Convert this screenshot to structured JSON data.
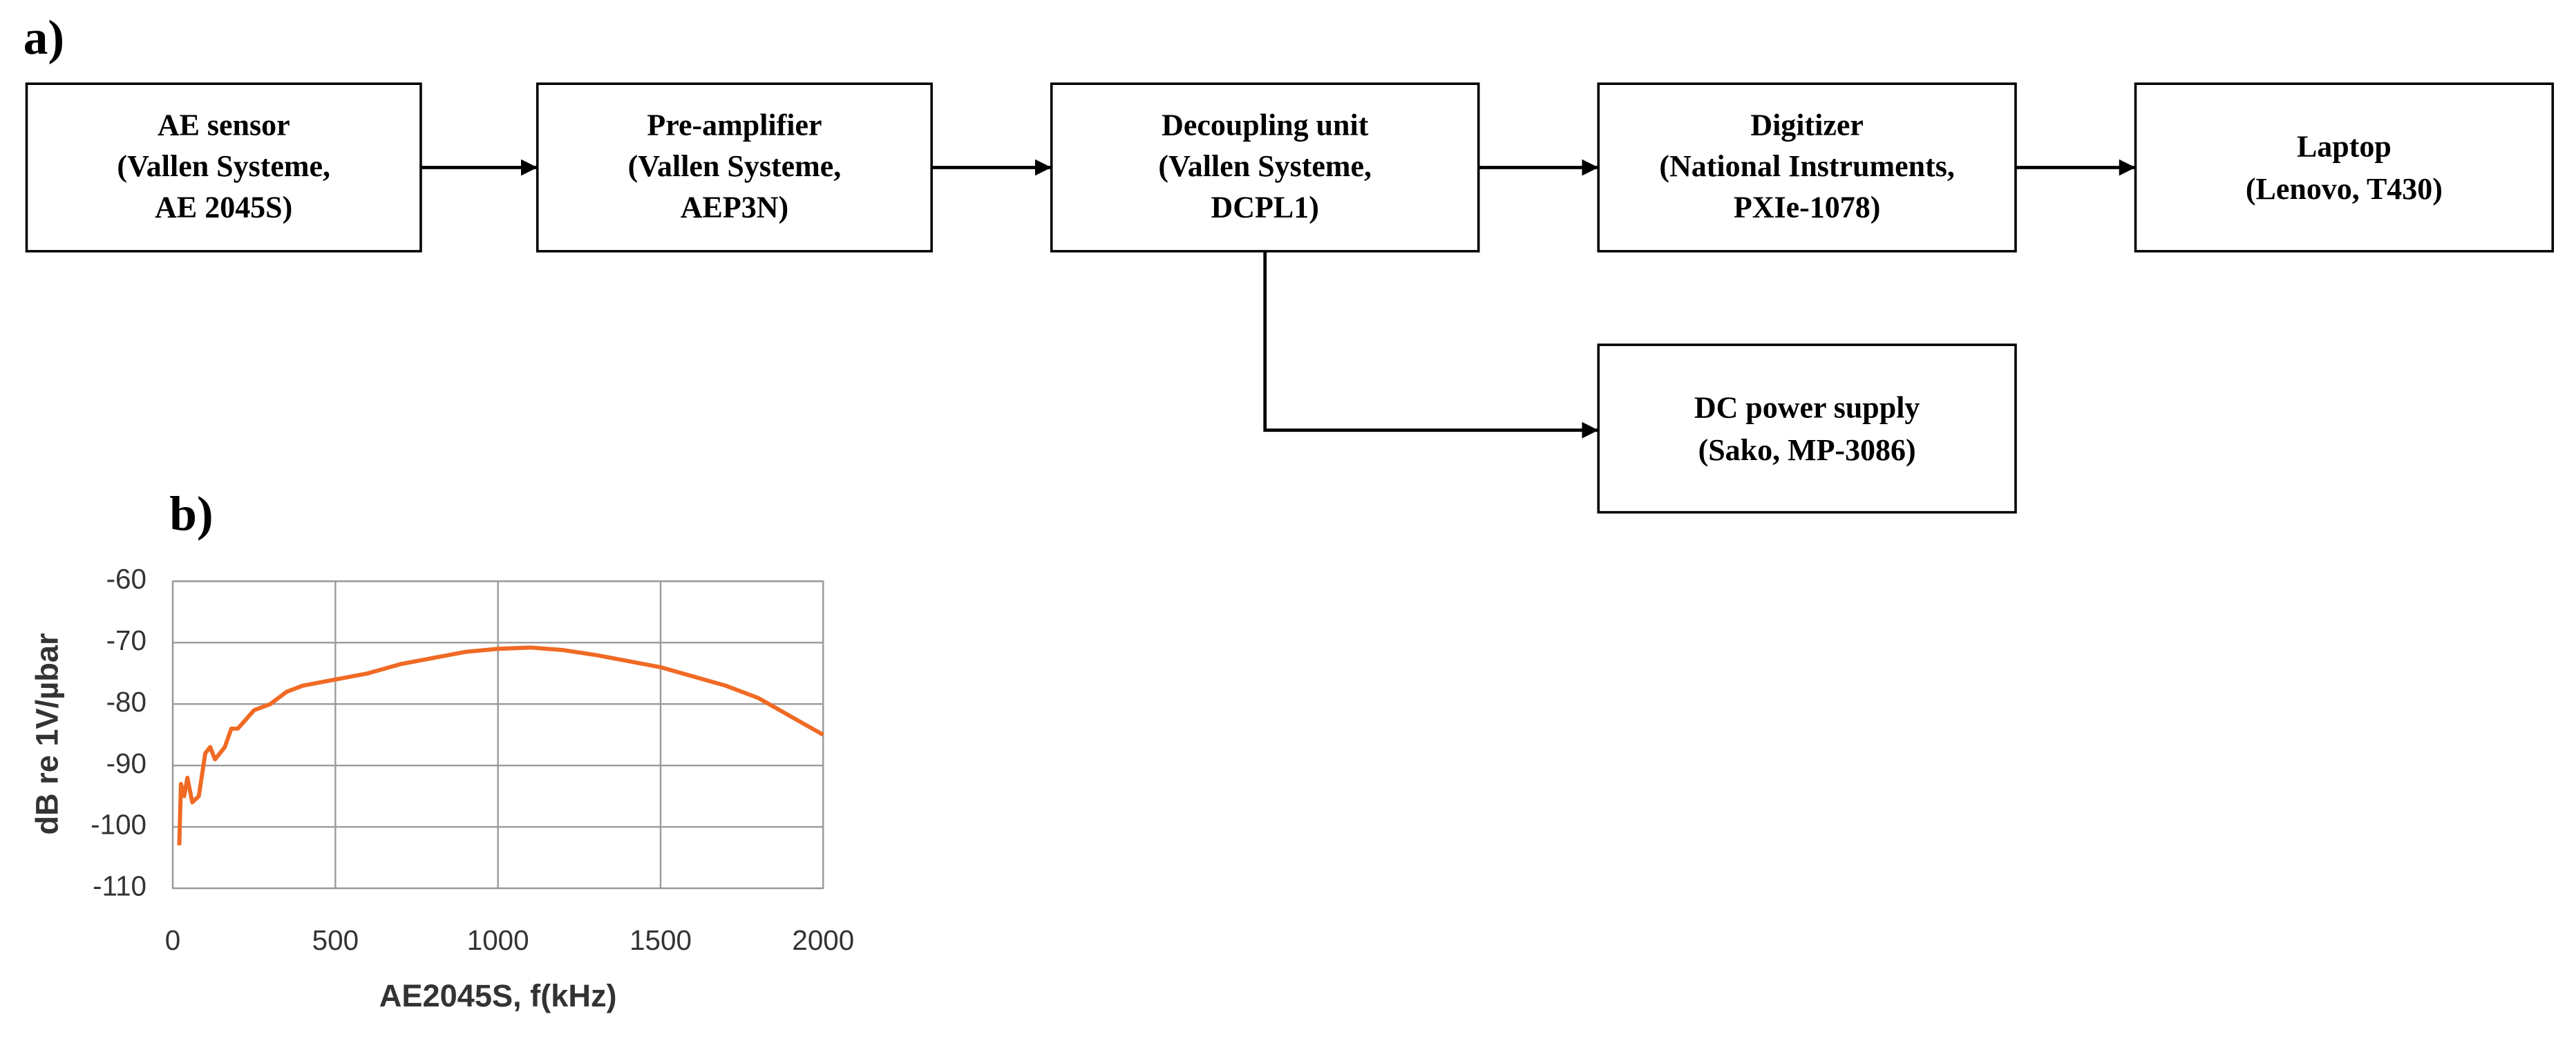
{
  "diagram": {
    "title": "a)",
    "nodes": [
      {
        "lines": [
          "AE sensor",
          "(Vallen Systeme,",
          "AE 2045S)"
        ]
      },
      {
        "lines": [
          "Pre-amplifier",
          "(Vallen Systeme,",
          "AEP3N)"
        ]
      },
      {
        "lines": [
          "Decoupling unit",
          "(Vallen Systeme,",
          "DCPL1)"
        ]
      },
      {
        "lines": [
          "Digitizer",
          "(National Instruments,",
          "PXIe-1078)"
        ]
      },
      {
        "lines": [
          "Laptop",
          "(Lenovo, T430)"
        ]
      },
      {
        "lines": [
          "DC power supply",
          "(Sako, MP-3086)"
        ]
      }
    ]
  },
  "chart_data": {
    "type": "line",
    "title": "b)",
    "xlabel": "AE2045S, f(kHz)",
    "ylabel": "dB re 1V/µbar",
    "x": [
      20,
      25,
      35,
      45,
      60,
      80,
      100,
      115,
      130,
      160,
      180,
      200,
      250,
      300,
      350,
      400,
      450,
      500,
      600,
      700,
      800,
      900,
      1000,
      1100,
      1200,
      1300,
      1400,
      1500,
      1600,
      1700,
      1800,
      1900,
      2000
    ],
    "values": [
      -103,
      -93,
      -95,
      -92,
      -96,
      -95,
      -88,
      -87,
      -89,
      -87,
      -84,
      -84,
      -81,
      -80,
      -78,
      -77,
      -76.5,
      -76,
      -75,
      -73.5,
      -72.5,
      -71.5,
      -71,
      -70.8,
      -71.2,
      -72,
      -73,
      -74,
      -75.5,
      -77,
      -79,
      -82,
      -85
    ],
    "color": "#f06a24",
    "xlim": [
      0,
      2000
    ],
    "xticks": [
      0,
      500,
      1000,
      1500,
      2000
    ],
    "ylim": [
      -110,
      -60
    ],
    "yticks": [
      -60,
      -70,
      -80,
      -90,
      -100,
      -110
    ],
    "grid": true
  }
}
